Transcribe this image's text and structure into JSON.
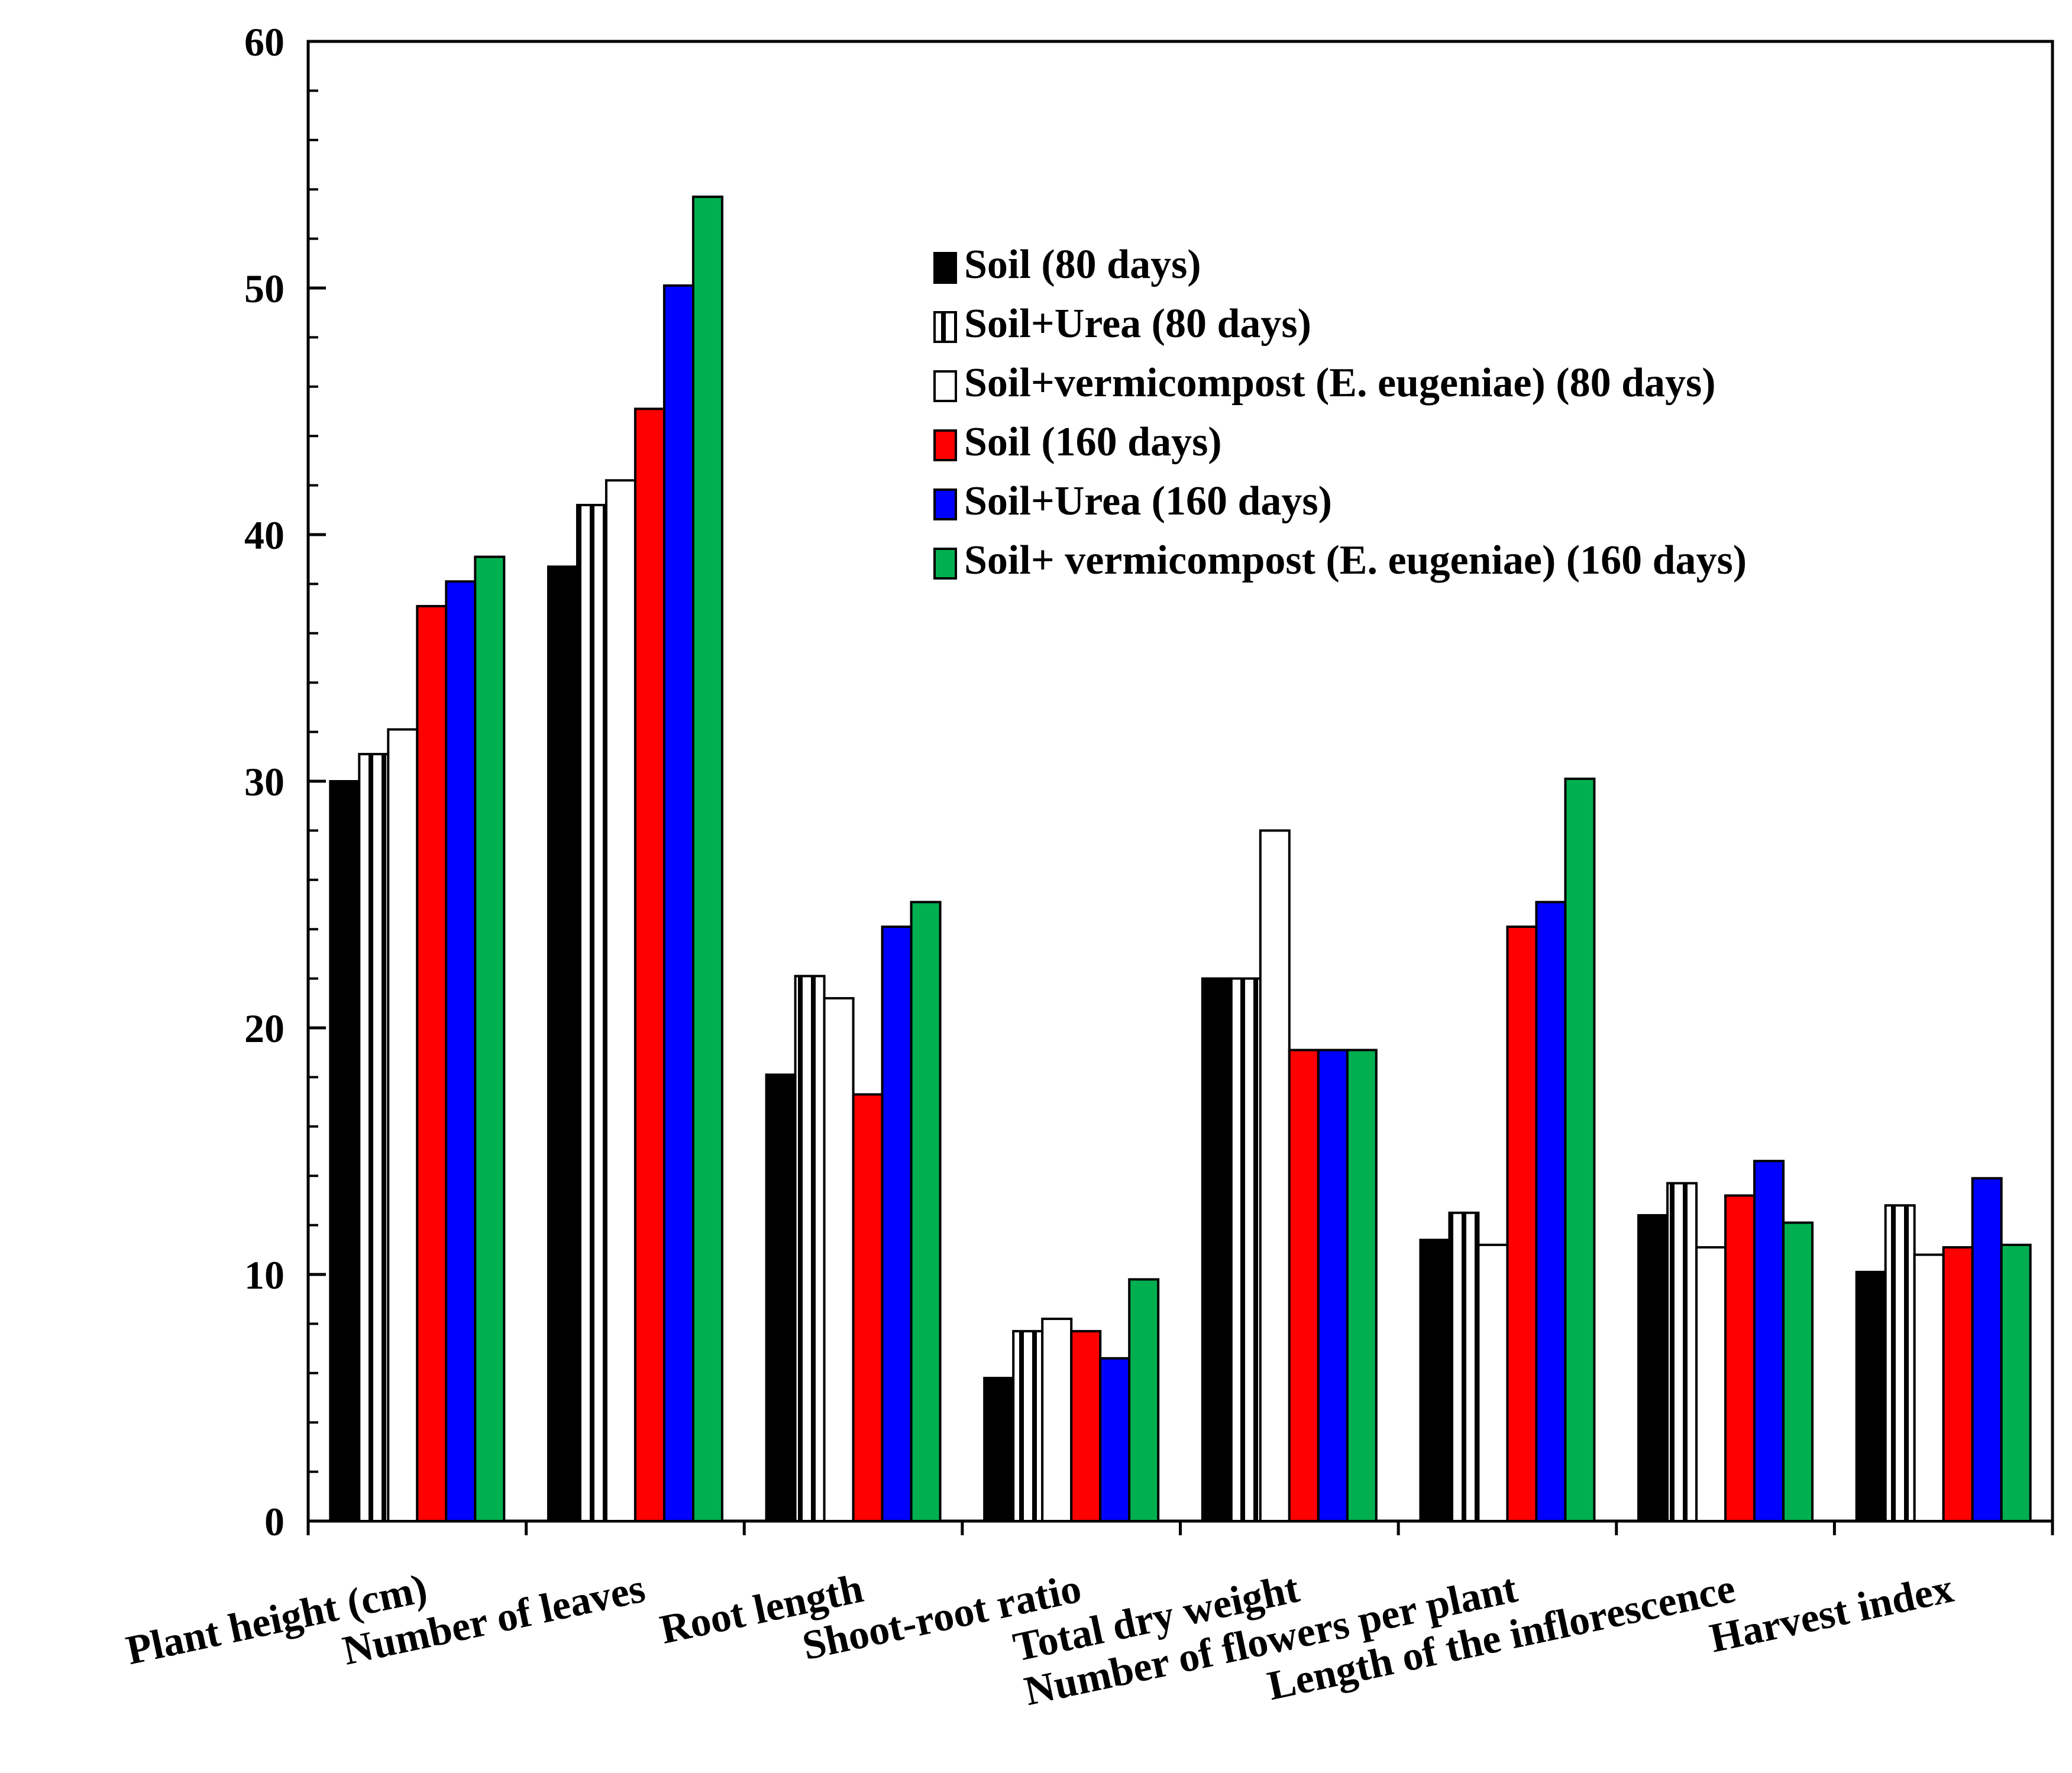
{
  "chart_data": {
    "type": "bar",
    "categories": [
      "Plant height (cm)",
      "Number of leaves",
      "Root length",
      "Shoot-root ratio",
      "Total dry weight",
      "Number of flowers per plant",
      "Length of the inflorescence",
      "Harvest index"
    ],
    "series": [
      {
        "name": "Soil (80 days)",
        "pattern": "solid",
        "color": "#000000",
        "values": [
          30,
          38.7,
          18.1,
          5.8,
          22,
          11.4,
          12.4,
          10.1
        ]
      },
      {
        "name": "Soil+Urea (80 days)",
        "pattern": "striped",
        "color": "#ffffff",
        "values": [
          31.1,
          41.2,
          22.1,
          7.7,
          22,
          12.5,
          13.7,
          12.8
        ]
      },
      {
        "name": "Soil+vermicompost (E. eugeniae) (80 days)",
        "pattern": "hollow",
        "color": "#ffffff",
        "values": [
          32.1,
          42.2,
          21.2,
          8.2,
          28,
          11.2,
          11.1,
          10.8
        ]
      },
      {
        "name": "Soil (160 days)",
        "pattern": "solid",
        "color": "#ff0000",
        "values": [
          37.1,
          45.1,
          17.3,
          7.7,
          19.1,
          24.1,
          13.2,
          11.1
        ]
      },
      {
        "name": "Soil+Urea (160 days)",
        "pattern": "solid",
        "color": "#0000ff",
        "values": [
          38.1,
          50.1,
          24.1,
          6.6,
          19.1,
          25.1,
          14.6,
          13.9
        ]
      },
      {
        "name": "Soil+ vermicompost (E. eugeniae) (160 days)",
        "pattern": "solid",
        "color": "#00b050",
        "values": [
          39.1,
          53.7,
          25.1,
          9.8,
          19.1,
          30.1,
          12.1,
          11.2
        ]
      }
    ],
    "ylim": [
      0,
      60
    ],
    "yticks": [
      "0",
      "10",
      "20",
      "30",
      "40",
      "50",
      "60"
    ],
    "title": "",
    "xlabel": "",
    "ylabel": "",
    "legend_position": "top-right",
    "grid": false
  }
}
